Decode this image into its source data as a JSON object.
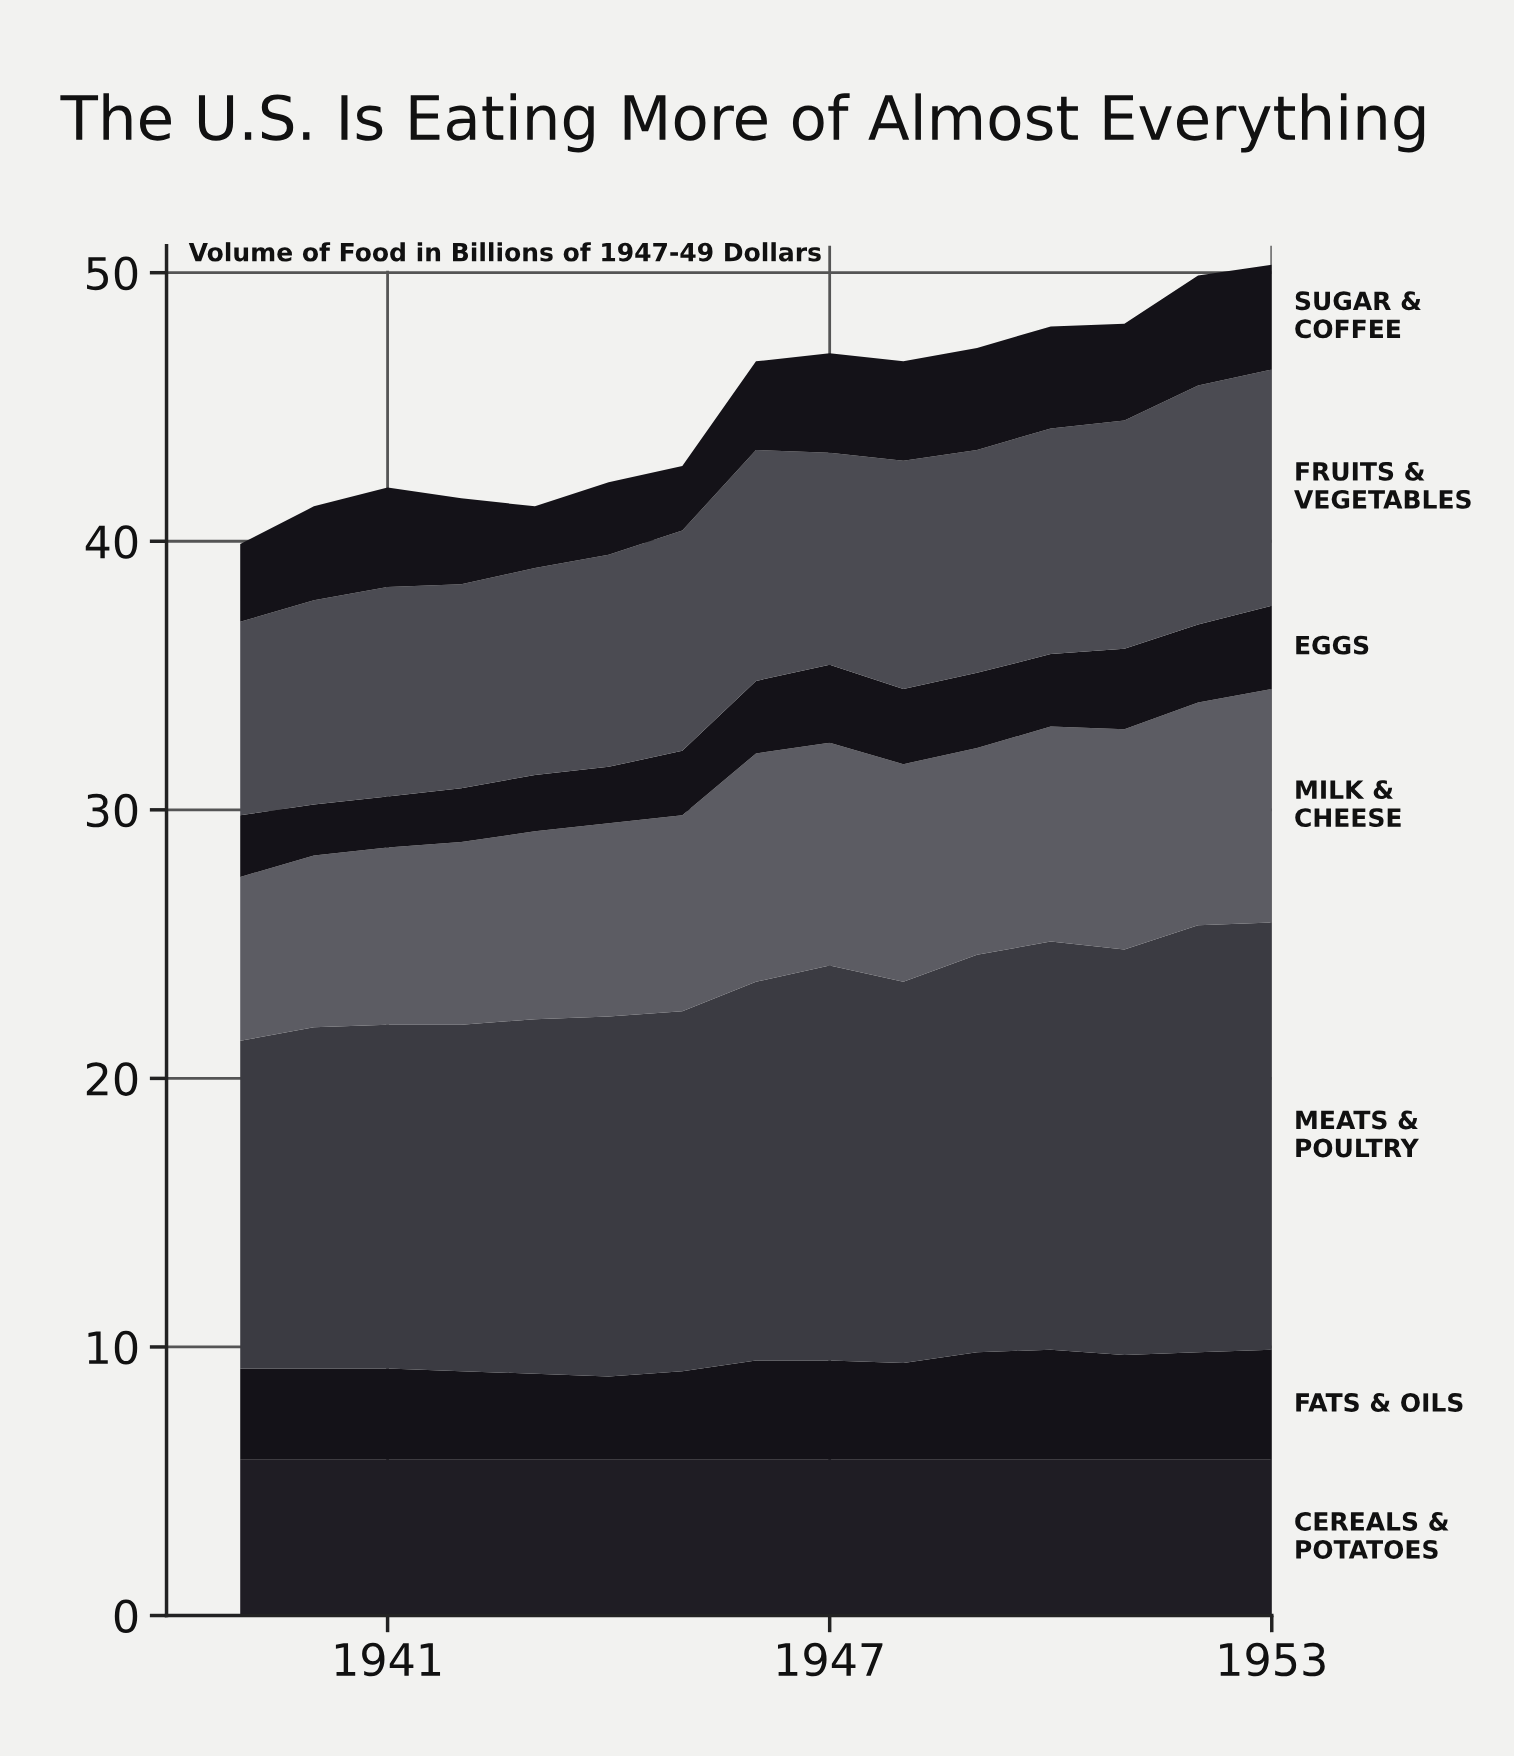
{
  "chart_data": {
    "type": "area",
    "stacked": true,
    "title": "The U.S. Is Eating More of Almost Everything",
    "annotations": [
      "Volume of Food in Billions of 1947-49 Dollars"
    ],
    "x": [
      1939,
      1940,
      1941,
      1942,
      1943,
      1944,
      1945,
      1946,
      1947,
      1948,
      1949,
      1950,
      1951,
      1952,
      1953
    ],
    "series": [
      {
        "name": "CEREALS &\nPOTATOES",
        "color": "#1f1d24",
        "values": [
          5.8,
          5.8,
          5.8,
          5.8,
          5.8,
          5.8,
          5.8,
          5.8,
          5.8,
          5.8,
          5.8,
          5.8,
          5.8,
          5.8,
          5.8
        ]
      },
      {
        "name": "FATS & OILS",
        "color": "#141218",
        "values": [
          3.4,
          3.4,
          3.4,
          3.3,
          3.2,
          3.1,
          3.3,
          3.7,
          3.7,
          3.6,
          4.0,
          4.1,
          3.9,
          4.0,
          4.1
        ]
      },
      {
        "name": "MEATS &\nPOULTRY",
        "color": "#3b3b42",
        "values": [
          12.2,
          12.7,
          12.8,
          12.9,
          13.2,
          13.4,
          13.4,
          14.1,
          14.7,
          14.2,
          14.8,
          15.2,
          15.1,
          15.9,
          15.9
        ]
      },
      {
        "name": "MILK &\nCHEESE",
        "color": "#5c5c63",
        "values": [
          6.1,
          6.4,
          6.6,
          6.8,
          7.0,
          7.2,
          7.3,
          8.5,
          8.3,
          8.1,
          7.7,
          8.0,
          8.2,
          8.3,
          8.7
        ]
      },
      {
        "name": "EGGS",
        "color": "#141218",
        "values": [
          2.3,
          1.9,
          1.9,
          2.0,
          2.1,
          2.1,
          2.4,
          2.7,
          2.9,
          2.8,
          2.8,
          2.7,
          3.0,
          2.9,
          3.1
        ]
      },
      {
        "name": "FRUITS &\nVEGETABLES",
        "color": "#4b4b52",
        "values": [
          7.2,
          7.6,
          7.8,
          7.6,
          7.7,
          7.9,
          8.2,
          8.6,
          7.9,
          8.5,
          8.3,
          8.4,
          8.5,
          8.9,
          8.8
        ]
      },
      {
        "name": "SUGAR &\nCOFFEE",
        "color": "#141218",
        "values": [
          2.9,
          3.5,
          3.7,
          3.2,
          2.3,
          2.7,
          2.4,
          3.3,
          3.7,
          3.7,
          3.8,
          3.8,
          3.6,
          4.1,
          3.9
        ]
      }
    ],
    "xlim": [
      1938,
      1953
    ],
    "xticks": [
      1941,
      1947,
      1953
    ],
    "ylim": [
      0,
      51
    ],
    "yticks": [
      0,
      10,
      20,
      30,
      40,
      50
    ],
    "grid": true,
    "legend": false
  }
}
